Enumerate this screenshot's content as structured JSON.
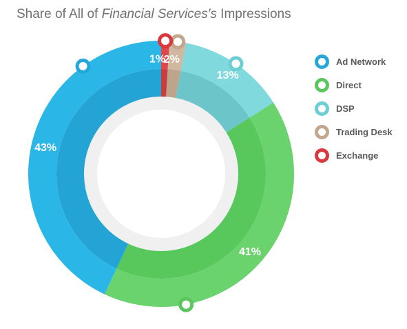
{
  "title": {
    "prefix": "Share of All of ",
    "emphasis": "Financial Services's",
    "suffix": " Impressions"
  },
  "chart_data": {
    "type": "pie",
    "variant": "donut",
    "title": "Share of All of Financial Services's Impressions",
    "legend_position": "right",
    "categories": [
      "Ad Network",
      "Direct",
      "DSP",
      "Trading Desk",
      "Exchange"
    ],
    "values": [
      43,
      41,
      13,
      2,
      1
    ],
    "labels": [
      "43%",
      "41%",
      "13%",
      "2%",
      "1%"
    ],
    "unit": "%",
    "colors": [
      "#2bb6e8",
      "#6bd36d",
      "#7fd9dd",
      "#cfb7a0",
      "#e0474b"
    ],
    "inner_colors": [
      "#24a4d4",
      "#58c85c",
      "#6cc5c9",
      "#bea48a",
      "#c93d40"
    ],
    "marker_colors": [
      "#25a8d8",
      "#5bc65e",
      "#6ccfd3",
      "#c2a68d",
      "#d9393d"
    ]
  }
}
